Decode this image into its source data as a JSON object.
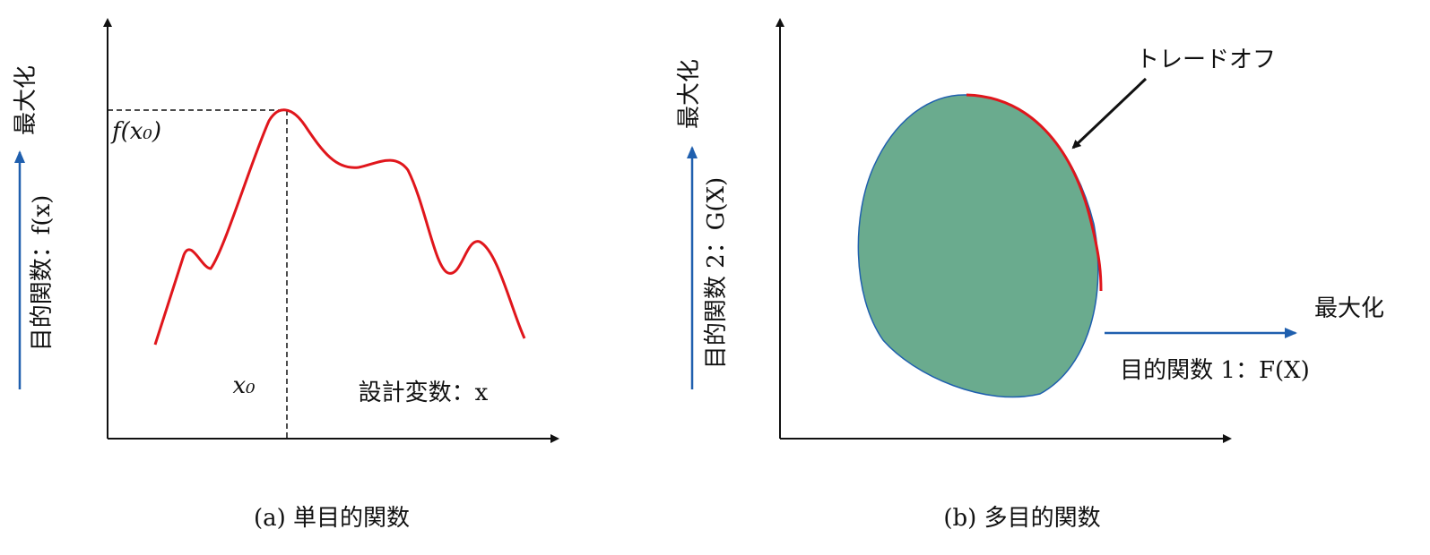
{
  "panel_a": {
    "y_max_label": "最大化",
    "y_axis_label": "目的関数：f(x)",
    "peak_value_label": "f(x₀)",
    "peak_position_label": "x₀",
    "x_axis_label": "設計変数：x",
    "caption": "(a) 単目的関数"
  },
  "panel_b": {
    "y_max_label": "最大化",
    "y_axis_label": "目的関数 2：G(X)",
    "tradeoff_label": "トレードオフ",
    "x_max_label": "最大化",
    "x_axis_label": "目的関数 1：F(X)",
    "caption": "(b) 多目的関数"
  }
}
